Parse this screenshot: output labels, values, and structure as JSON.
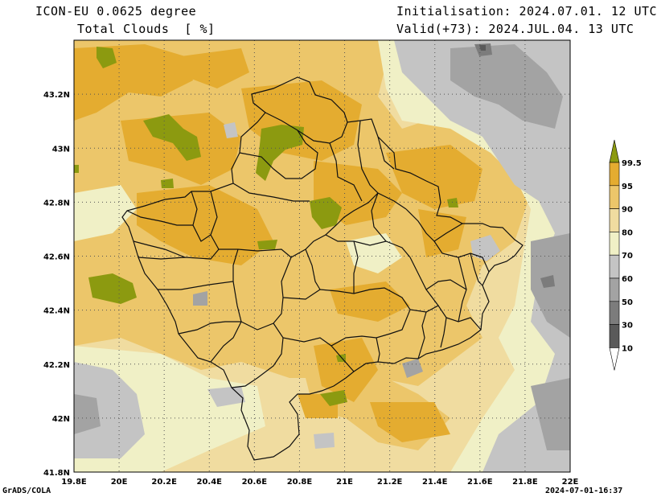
{
  "header": {
    "model": "ICON-EU 0.0625 degree",
    "variable": "Total Clouds  [ %]",
    "init": "Initialisation: 2024.07.01. 12 UTC",
    "valid": "Valid(+73): 2024.JUL.04. 13 UTC"
  },
  "footer": {
    "credit": "GrADS/COLA",
    "timestamp": "2024-07-01-16:37"
  },
  "map": {
    "x_ticks": [
      "19.8E",
      "20E",
      "20.2E",
      "20.4E",
      "20.6E",
      "20.8E",
      "21E",
      "21.2E",
      "21.4E",
      "21.6E",
      "21.8E",
      "22E"
    ],
    "y_ticks": [
      "43.2N",
      "43N",
      "42.8N",
      "42.6N",
      "42.4N",
      "42.2N",
      "42N",
      "41.8N"
    ],
    "lon_range": [
      19.8,
      22.0
    ],
    "lat_range": [
      41.8,
      43.4
    ],
    "colors": {
      "c10": "#5a5a5a",
      "c30": "#7c7c7c",
      "c50": "#a3a3a3",
      "c60": "#c4c4c4",
      "c70": "#f0f0c6",
      "c80": "#f0dca0",
      "c90": "#ecc66a",
      "c95": "#e4ac30",
      "c99": "#8c9a10",
      "border": "#101010",
      "grid": "#555555"
    }
  },
  "legend": {
    "labels": [
      "99.5",
      "95",
      "90",
      "80",
      "70",
      "60",
      "50",
      "30",
      "10"
    ],
    "colors": [
      "#8c9a10",
      "#e4ac30",
      "#ecc66a",
      "#f0dca0",
      "#f0f0c6",
      "#c4c4c4",
      "#a3a3a3",
      "#7c7c7c",
      "#5a5a5a"
    ]
  }
}
